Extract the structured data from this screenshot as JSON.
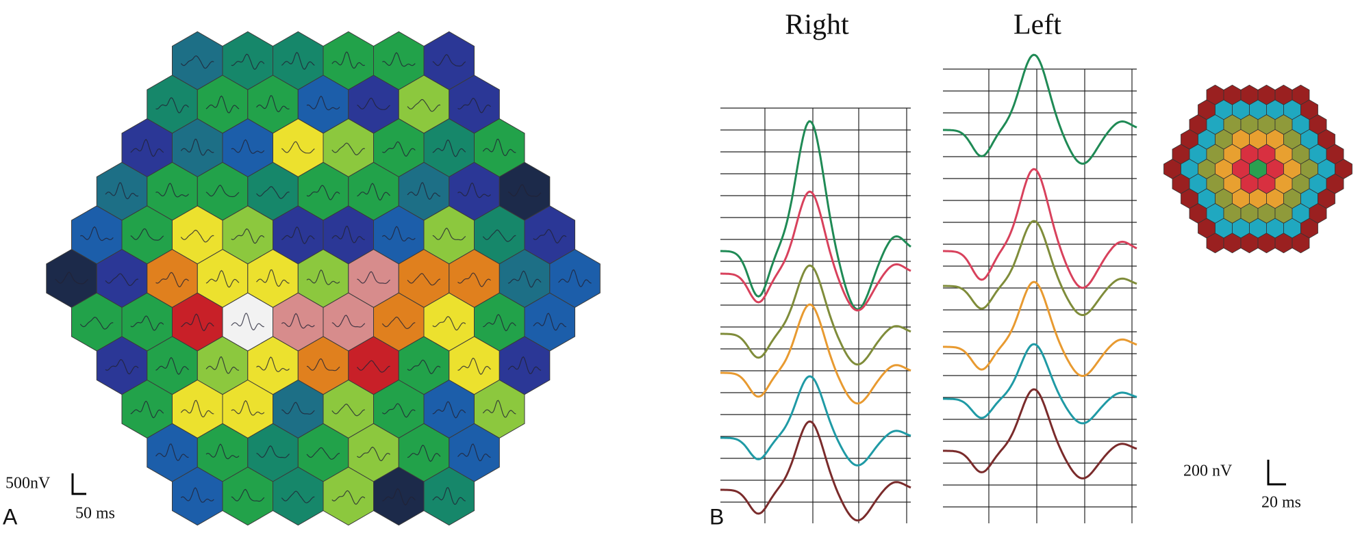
{
  "panel_a": {
    "label": "A",
    "scale_v": "500nV",
    "scale_t": "50 ms",
    "palette": {
      "t": "#1d6f86",
      "m": "#16876a",
      "g": "#22a24a",
      "s": "#1c5eaa",
      "n": "#2b3796",
      "k": "#1c2a4a",
      "l": "#8cc83e",
      "y": "#ece12e",
      "o": "#e0801e",
      "r": "#c82028",
      "p": "#d78c8c",
      "w": "#f2f2f2"
    },
    "rows": [
      "tmmggn",
      "mggsnln",
      "ntsylgmg",
      "tggmggtnk",
      "sgylnnslmn",
      "knoyylpoots",
      "ggrwppoygs",
      "nglyorgyn",
      "gyytlgsl",
      "sgmglgs",
      "sgmlkm"
    ]
  },
  "panel_b": {
    "label": "B",
    "columns": [
      {
        "title": "Right"
      },
      {
        "title": "Left"
      }
    ],
    "traces": [
      "#1f8a55",
      "#d8415c",
      "#7f8c3a",
      "#e89a30",
      "#1f9aa5",
      "#7a2b2b"
    ],
    "rings": [
      "#2aa050",
      "#d83040",
      "#e8a030",
      "#8f9a3a",
      "#20a8c0",
      "#9a2020"
    ],
    "scale_v": "200 nV",
    "scale_t": "20 ms"
  }
}
